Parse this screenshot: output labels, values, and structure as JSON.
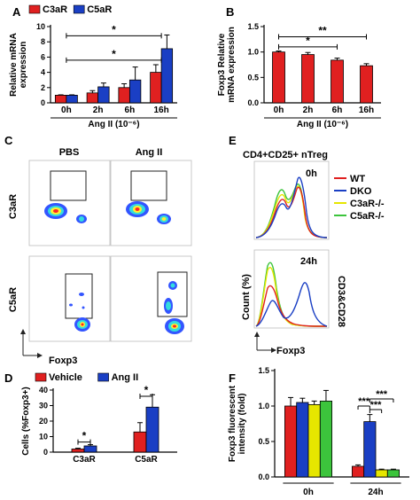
{
  "panels": {
    "A": {
      "letter": "A"
    },
    "B": {
      "letter": "B"
    },
    "C": {
      "letter": "C",
      "col_left": "PBS",
      "col_right": "Ang II",
      "row_top": "C3aR",
      "row_bottom": "C5aR",
      "x_axis": "Foxp3"
    },
    "D": {
      "letter": "D"
    },
    "E": {
      "letter": "E",
      "title": "CD4+CD25+ nTreg",
      "time_top": "0h",
      "time_bottom": "24h",
      "y_label": "Count (%)",
      "x_label": "Foxp3",
      "side_label": "CD3&CD28",
      "legend": [
        {
          "name": "WT",
          "color": "#e02020"
        },
        {
          "name": "DKO",
          "color": "#1a3fc4"
        },
        {
          "name": "C3aR-/-",
          "color": "#e6e600"
        },
        {
          "name": "C5aR-/-",
          "color": "#3cc43c"
        }
      ]
    },
    "F": {
      "letter": "F"
    }
  },
  "chart_data": [
    {
      "id": "A",
      "type": "bar",
      "categories": [
        "0h",
        "2h",
        "6h",
        "16h"
      ],
      "series": [
        {
          "name": "C3aR",
          "color": "#e02020",
          "values": [
            1.0,
            1.3,
            2.0,
            4.0
          ],
          "errors": [
            0.05,
            0.3,
            0.5,
            1.0
          ]
        },
        {
          "name": "C5aR",
          "color": "#1a3fc4",
          "values": [
            1.0,
            2.1,
            3.0,
            7.1
          ],
          "errors": [
            0.05,
            0.5,
            1.7,
            1.8
          ]
        }
      ],
      "ylabel": "Relative mRNA expression",
      "xlabel": "Ang II (10⁻⁶)",
      "ylim": [
        0,
        10
      ],
      "yticks": [
        0,
        2,
        4,
        6,
        8,
        10
      ],
      "significance": [
        {
          "from": 0,
          "to": 3,
          "label": "*",
          "level": 8.8
        },
        {
          "from": 0,
          "to": 3,
          "label": "*",
          "level": 5.6
        }
      ]
    },
    {
      "id": "B",
      "type": "bar",
      "categories": [
        "0h",
        "2h",
        "6h",
        "16h"
      ],
      "series": [
        {
          "name": "",
          "color": "#e02020",
          "values": [
            1.0,
            0.95,
            0.84,
            0.73
          ],
          "errors": [
            0.02,
            0.04,
            0.04,
            0.04
          ]
        }
      ],
      "ylabel": "Foxp3 Relative mRNA expression",
      "xlabel": "Ang II (10⁻⁶)",
      "ylim": [
        0,
        1.5
      ],
      "yticks": [
        0.0,
        0.5,
        1.0,
        1.5
      ],
      "significance": [
        {
          "from": 0,
          "to": 3,
          "label": "**",
          "level": 1.3
        },
        {
          "from": 0,
          "to": 2,
          "label": "*",
          "level": 1.1
        }
      ]
    },
    {
      "id": "D",
      "type": "bar",
      "categories": [
        "C3aR",
        "C5aR"
      ],
      "series": [
        {
          "name": "Vehicle",
          "color": "#e02020",
          "values": [
            2,
            13
          ],
          "errors": [
            0.5,
            6
          ]
        },
        {
          "name": "Ang II",
          "color": "#1a3fc4",
          "values": [
            4,
            29
          ],
          "errors": [
            0.8,
            8
          ]
        }
      ],
      "ylabel": "Cells (%Foxp3+)",
      "ylim": [
        0,
        40
      ],
      "yticks": [
        0,
        10,
        20,
        30,
        40
      ],
      "significance": [
        {
          "group": 0,
          "label": "*",
          "level": 6.5
        },
        {
          "group": 1,
          "label": "*",
          "level": 36
        }
      ]
    },
    {
      "id": "F",
      "type": "bar",
      "categories": [
        "0h",
        "24h"
      ],
      "series": [
        {
          "name": "WT",
          "color": "#e02020",
          "values": [
            1.0,
            0.15
          ],
          "errors": [
            0.12,
            0.02
          ]
        },
        {
          "name": "DKO",
          "color": "#1a3fc4",
          "values": [
            1.05,
            0.78
          ],
          "errors": [
            0.06,
            0.1
          ]
        },
        {
          "name": "C3aR-/-",
          "color": "#e6e600",
          "values": [
            1.02,
            0.1
          ],
          "errors": [
            0.05,
            0.01
          ]
        },
        {
          "name": "C5aR-/-",
          "color": "#3cc43c",
          "values": [
            1.07,
            0.1
          ],
          "errors": [
            0.15,
            0.01
          ]
        }
      ],
      "ylabel": "Foxp3 fluorescent intensity (fold)",
      "ylim": [
        0,
        1.5
      ],
      "yticks": [
        0.0,
        0.5,
        1.0,
        1.5
      ],
      "significance_labels": [
        "***",
        "***",
        "***"
      ]
    }
  ]
}
